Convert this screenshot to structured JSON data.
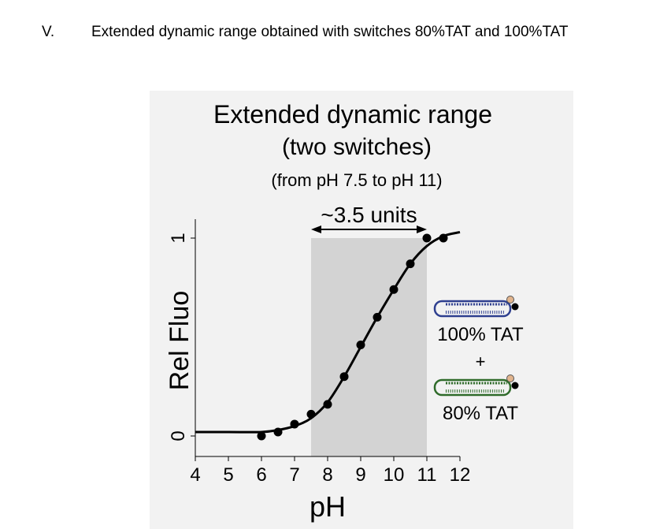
{
  "heading": {
    "number": "V.",
    "text": "Extended dynamic range obtained with switches 80%TAT and 100%TAT"
  },
  "chart_data": {
    "type": "scatter",
    "title": "Extended dynamic range",
    "subtitle": "(two switches)",
    "subtitle2": "(from pH 7.5 to pH 11)",
    "xlabel": "pH",
    "ylabel": "Rel Fluo",
    "xlim": [
      4,
      12
    ],
    "ylim": [
      0,
      1
    ],
    "x_ticks": [
      4,
      5,
      6,
      7,
      8,
      9,
      10,
      11,
      12
    ],
    "y_ticks": [
      0,
      1
    ],
    "points": {
      "x": [
        6.0,
        6.5,
        7.0,
        7.5,
        8.0,
        8.5,
        9.0,
        9.5,
        10.0,
        10.5,
        11.0,
        11.5
      ],
      "y": [
        0.0,
        0.02,
        0.06,
        0.11,
        0.16,
        0.3,
        0.46,
        0.6,
        0.74,
        0.87,
        1.0,
        1.0
      ]
    },
    "fit_curve": {
      "x": [
        4.0,
        5.0,
        6.0,
        6.5,
        7.0,
        7.5,
        8.0,
        8.5,
        9.0,
        9.5,
        10.0,
        10.5,
        11.0,
        11.5,
        12.0
      ],
      "y": [
        0.02,
        0.02,
        0.02,
        0.03,
        0.05,
        0.09,
        0.17,
        0.3,
        0.45,
        0.6,
        0.74,
        0.87,
        0.96,
        1.01,
        1.03
      ]
    },
    "shaded_range": {
      "x": [
        7.5,
        11.0
      ],
      "label": "~3.5 units"
    },
    "legend": {
      "label_top": "100% TAT",
      "plus": "+",
      "label_bottom": "80% TAT",
      "color_top": "#2e3f8f",
      "color_bottom": "#2f6b2a"
    },
    "colors": {
      "shade": "#d3d3d3",
      "points": "#000000",
      "background": "#f2f2f2"
    }
  }
}
